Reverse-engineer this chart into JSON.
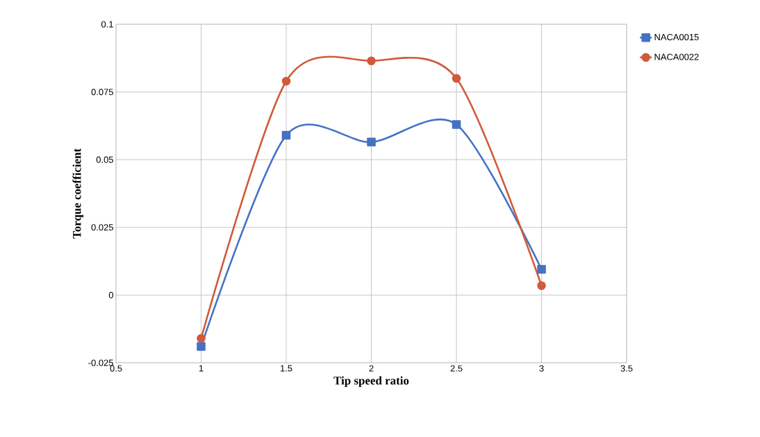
{
  "chart_data": {
    "type": "line",
    "xlabel": "Tip speed ratio",
    "ylabel": "Torque coefficient",
    "x": [
      1,
      1.5,
      2,
      2.5,
      3
    ],
    "series": [
      {
        "name": "NACA0015",
        "color": "#4472c4",
        "marker": "square",
        "values": [
          -0.019,
          0.059,
          0.0565,
          0.063,
          0.0095
        ]
      },
      {
        "name": "NACA0022",
        "color": "#d05a3a",
        "marker": "circle",
        "values": [
          -0.016,
          0.079,
          0.0865,
          0.08,
          0.0035
        ]
      }
    ],
    "xlim": [
      0.5,
      3.5
    ],
    "xticks": [
      0.5,
      1,
      1.5,
      2,
      2.5,
      3,
      3.5
    ],
    "ylim": [
      -0.025,
      0.1
    ],
    "yticks": [
      -0.025,
      0,
      0.025,
      0.05,
      0.075,
      0.1
    ],
    "grid": true,
    "legend": "right"
  }
}
